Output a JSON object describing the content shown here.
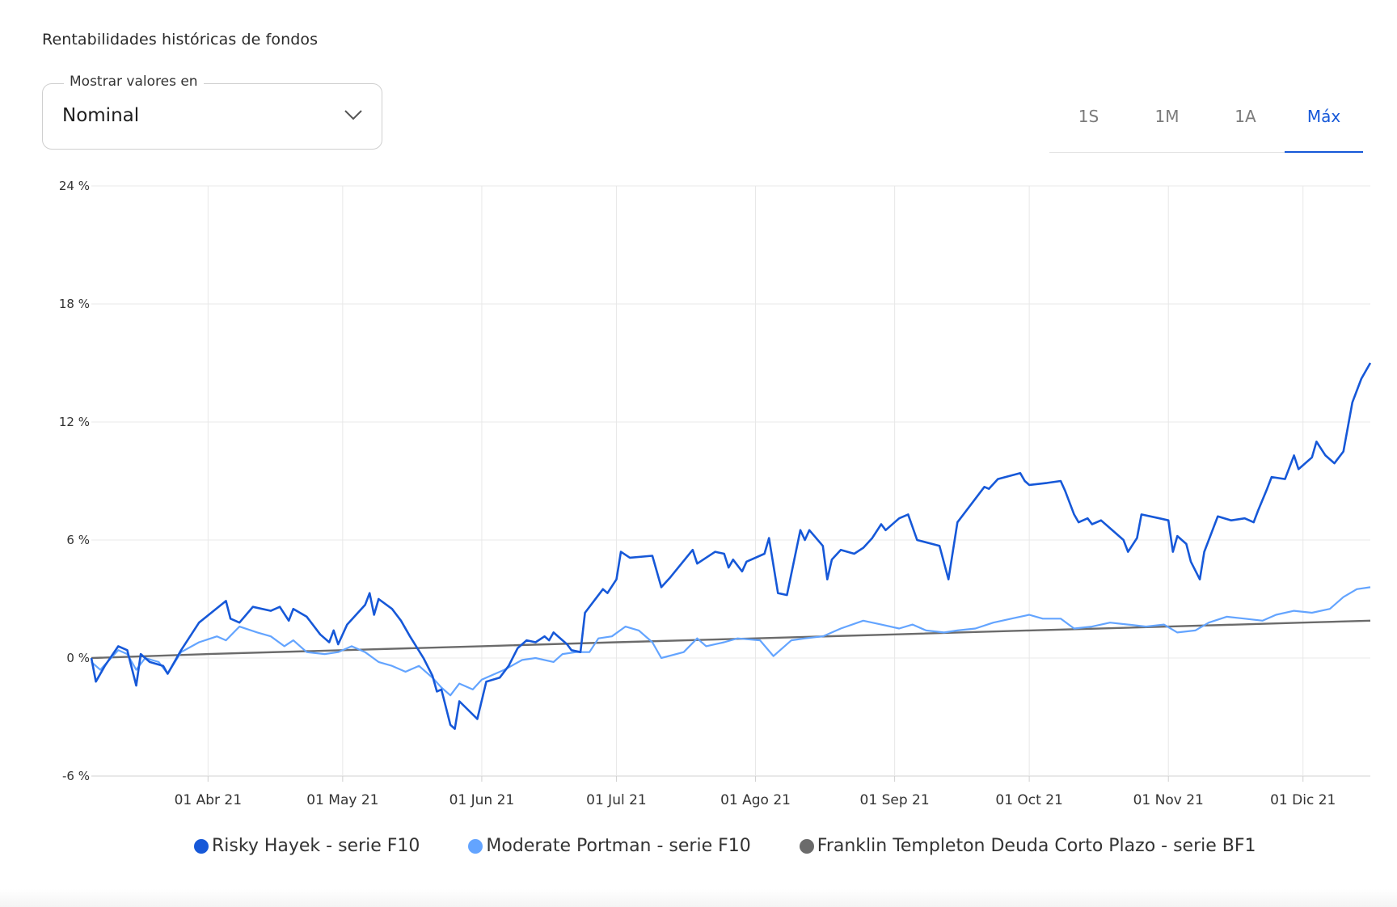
{
  "header": {
    "title": "Rentabilidades históricas de fondos"
  },
  "display_select": {
    "label": "Mostrar valores en",
    "value": "Nominal",
    "icon": "chevron-down-icon"
  },
  "range_tabs": [
    {
      "label": "1S",
      "active": false
    },
    {
      "label": "1M",
      "active": false
    },
    {
      "label": "1A",
      "active": false
    },
    {
      "label": "Máx",
      "active": true
    }
  ],
  "colors": {
    "accent": "#1658d8",
    "grid": "#e8e8e8",
    "axis": "#d0d0d0"
  },
  "chart_data": {
    "type": "line",
    "title": "",
    "xlabel": "",
    "ylabel": "",
    "xlim": [
      "2021-03-06",
      "2021-12-16"
    ],
    "ylim": [
      -6,
      24
    ],
    "yticks": [
      -6,
      0,
      6,
      12,
      18,
      24
    ],
    "ytick_labels": [
      "-6 %",
      "0 %",
      "6 %",
      "12 %",
      "18 %",
      "24 %"
    ],
    "xticks": [
      "2021-04-01",
      "2021-05-01",
      "2021-06-01",
      "2021-07-01",
      "2021-08-01",
      "2021-09-01",
      "2021-10-01",
      "2021-11-01",
      "2021-12-01"
    ],
    "xtick_labels": [
      "01 Abr 21",
      "01 May 21",
      "01 Jun 21",
      "01 Jul 21",
      "01 Ago 21",
      "01 Sep 21",
      "01 Oct 21",
      "01 Nov 21",
      "01 Dic 21"
    ],
    "grid": true,
    "legend_position": "bottom",
    "series": [
      {
        "name": "Risky Hayek - serie F10",
        "color": "#1658d8",
        "points": [
          [
            "2021-03-06",
            0.0
          ],
          [
            "2021-03-07",
            -1.2
          ],
          [
            "2021-03-09",
            -0.4
          ],
          [
            "2021-03-12",
            0.6
          ],
          [
            "2021-03-14",
            0.4
          ],
          [
            "2021-03-16",
            -1.4
          ],
          [
            "2021-03-17",
            0.2
          ],
          [
            "2021-03-19",
            -0.2
          ],
          [
            "2021-03-22",
            -0.4
          ],
          [
            "2021-03-23",
            -0.8
          ],
          [
            "2021-03-26",
            0.4
          ],
          [
            "2021-03-30",
            1.8
          ],
          [
            "2021-04-05",
            2.9
          ],
          [
            "2021-04-06",
            2.0
          ],
          [
            "2021-04-08",
            1.8
          ],
          [
            "2021-04-11",
            2.6
          ],
          [
            "2021-04-15",
            2.4
          ],
          [
            "2021-04-17",
            2.6
          ],
          [
            "2021-04-19",
            1.9
          ],
          [
            "2021-04-20",
            2.5
          ],
          [
            "2021-04-23",
            2.1
          ],
          [
            "2021-04-26",
            1.2
          ],
          [
            "2021-04-28",
            0.8
          ],
          [
            "2021-04-29",
            1.4
          ],
          [
            "2021-04-30",
            0.7
          ],
          [
            "2021-05-02",
            1.7
          ],
          [
            "2021-05-06",
            2.7
          ],
          [
            "2021-05-07",
            3.3
          ],
          [
            "2021-05-08",
            2.2
          ],
          [
            "2021-05-09",
            3.0
          ],
          [
            "2021-05-12",
            2.5
          ],
          [
            "2021-05-14",
            1.9
          ],
          [
            "2021-05-16",
            1.1
          ],
          [
            "2021-05-19",
            0.0
          ],
          [
            "2021-05-21",
            -0.9
          ],
          [
            "2021-05-22",
            -1.7
          ],
          [
            "2021-05-23",
            -1.6
          ],
          [
            "2021-05-25",
            -3.4
          ],
          [
            "2021-05-26",
            -3.6
          ],
          [
            "2021-05-27",
            -2.2
          ],
          [
            "2021-05-31",
            -3.1
          ],
          [
            "2021-06-02",
            -1.2
          ],
          [
            "2021-06-05",
            -1.0
          ],
          [
            "2021-06-07",
            -0.4
          ],
          [
            "2021-06-09",
            0.5
          ],
          [
            "2021-06-11",
            0.9
          ],
          [
            "2021-06-13",
            0.8
          ],
          [
            "2021-06-15",
            1.1
          ],
          [
            "2021-06-16",
            0.9
          ],
          [
            "2021-06-17",
            1.3
          ],
          [
            "2021-06-20",
            0.7
          ],
          [
            "2021-06-21",
            0.4
          ],
          [
            "2021-06-23",
            0.3
          ],
          [
            "2021-06-24",
            2.3
          ],
          [
            "2021-06-28",
            3.5
          ],
          [
            "2021-06-29",
            3.3
          ],
          [
            "2021-07-01",
            4.0
          ],
          [
            "2021-07-02",
            5.4
          ],
          [
            "2021-07-04",
            5.1
          ],
          [
            "2021-07-09",
            5.2
          ],
          [
            "2021-07-11",
            3.6
          ],
          [
            "2021-07-13",
            4.1
          ],
          [
            "2021-07-18",
            5.5
          ],
          [
            "2021-07-19",
            4.8
          ],
          [
            "2021-07-23",
            5.4
          ],
          [
            "2021-07-25",
            5.3
          ],
          [
            "2021-07-26",
            4.6
          ],
          [
            "2021-07-27",
            5.0
          ],
          [
            "2021-07-29",
            4.4
          ],
          [
            "2021-07-30",
            4.9
          ],
          [
            "2021-08-03",
            5.3
          ],
          [
            "2021-08-04",
            6.1
          ],
          [
            "2021-08-06",
            3.3
          ],
          [
            "2021-08-08",
            3.2
          ],
          [
            "2021-08-11",
            6.5
          ],
          [
            "2021-08-12",
            6.0
          ],
          [
            "2021-08-13",
            6.5
          ],
          [
            "2021-08-16",
            5.7
          ],
          [
            "2021-08-17",
            4.0
          ],
          [
            "2021-08-18",
            5.0
          ],
          [
            "2021-08-20",
            5.5
          ],
          [
            "2021-08-23",
            5.3
          ],
          [
            "2021-08-25",
            5.6
          ],
          [
            "2021-08-27",
            6.1
          ],
          [
            "2021-08-29",
            6.8
          ],
          [
            "2021-08-30",
            6.5
          ],
          [
            "2021-09-02",
            7.1
          ],
          [
            "2021-09-04",
            7.3
          ],
          [
            "2021-09-06",
            6.0
          ],
          [
            "2021-09-11",
            5.7
          ],
          [
            "2021-09-13",
            4.0
          ],
          [
            "2021-09-15",
            6.9
          ],
          [
            "2021-09-20",
            8.4
          ],
          [
            "2021-09-21",
            8.7
          ],
          [
            "2021-09-22",
            8.6
          ],
          [
            "2021-09-24",
            9.1
          ],
          [
            "2021-09-29",
            9.4
          ],
          [
            "2021-09-30",
            9.0
          ],
          [
            "2021-10-01",
            8.8
          ],
          [
            "2021-10-05",
            8.9
          ],
          [
            "2021-10-08",
            9.0
          ],
          [
            "2021-10-09",
            8.5
          ],
          [
            "2021-10-11",
            7.3
          ],
          [
            "2021-10-12",
            6.9
          ],
          [
            "2021-10-14",
            7.1
          ],
          [
            "2021-10-15",
            6.8
          ],
          [
            "2021-10-17",
            7.0
          ],
          [
            "2021-10-19",
            6.6
          ],
          [
            "2021-10-22",
            6.0
          ],
          [
            "2021-10-23",
            5.4
          ],
          [
            "2021-10-25",
            6.1
          ],
          [
            "2021-10-26",
            7.3
          ],
          [
            "2021-10-30",
            7.1
          ],
          [
            "2021-11-01",
            7.0
          ],
          [
            "2021-11-02",
            5.4
          ],
          [
            "2021-11-03",
            6.2
          ],
          [
            "2021-11-05",
            5.8
          ],
          [
            "2021-11-06",
            4.9
          ],
          [
            "2021-11-08",
            4.0
          ],
          [
            "2021-11-09",
            5.4
          ],
          [
            "2021-11-12",
            7.2
          ],
          [
            "2021-11-15",
            7.0
          ],
          [
            "2021-11-18",
            7.1
          ],
          [
            "2021-11-20",
            6.9
          ],
          [
            "2021-11-21",
            7.5
          ],
          [
            "2021-11-23",
            8.6
          ],
          [
            "2021-11-24",
            9.2
          ],
          [
            "2021-11-27",
            9.1
          ],
          [
            "2021-11-29",
            10.3
          ],
          [
            "2021-11-30",
            9.6
          ],
          [
            "2021-12-03",
            10.2
          ],
          [
            "2021-12-04",
            11.0
          ],
          [
            "2021-12-06",
            10.3
          ],
          [
            "2021-12-08",
            9.9
          ],
          [
            "2021-12-10",
            10.5
          ],
          [
            "2021-12-12",
            13.0
          ],
          [
            "2021-12-14",
            14.2
          ],
          [
            "2021-12-16",
            15.0
          ]
        ]
      },
      {
        "name": "Moderate Portman - serie F10",
        "color": "#63a4ff",
        "points": [
          [
            "2021-03-06",
            -0.2
          ],
          [
            "2021-03-08",
            -0.6
          ],
          [
            "2021-03-10",
            -0.1
          ],
          [
            "2021-03-12",
            0.4
          ],
          [
            "2021-03-14",
            0.2
          ],
          [
            "2021-03-16",
            -0.6
          ],
          [
            "2021-03-18",
            0.0
          ],
          [
            "2021-03-21",
            -0.2
          ],
          [
            "2021-03-23",
            -0.8
          ],
          [
            "2021-03-26",
            0.3
          ],
          [
            "2021-03-30",
            0.8
          ],
          [
            "2021-04-03",
            1.1
          ],
          [
            "2021-04-05",
            0.9
          ],
          [
            "2021-04-08",
            1.6
          ],
          [
            "2021-04-12",
            1.3
          ],
          [
            "2021-04-15",
            1.1
          ],
          [
            "2021-04-18",
            0.6
          ],
          [
            "2021-04-20",
            0.9
          ],
          [
            "2021-04-23",
            0.3
          ],
          [
            "2021-04-27",
            0.2
          ],
          [
            "2021-04-30",
            0.3
          ],
          [
            "2021-05-03",
            0.6
          ],
          [
            "2021-05-06",
            0.3
          ],
          [
            "2021-05-09",
            -0.2
          ],
          [
            "2021-05-12",
            -0.4
          ],
          [
            "2021-05-15",
            -0.7
          ],
          [
            "2021-05-18",
            -0.4
          ],
          [
            "2021-05-21",
            -1.0
          ],
          [
            "2021-05-23",
            -1.5
          ],
          [
            "2021-05-25",
            -1.9
          ],
          [
            "2021-05-27",
            -1.3
          ],
          [
            "2021-05-30",
            -1.6
          ],
          [
            "2021-06-01",
            -1.1
          ],
          [
            "2021-06-03",
            -0.9
          ],
          [
            "2021-06-06",
            -0.6
          ],
          [
            "2021-06-10",
            -0.1
          ],
          [
            "2021-06-13",
            0.0
          ],
          [
            "2021-06-17",
            -0.2
          ],
          [
            "2021-06-19",
            0.2
          ],
          [
            "2021-06-22",
            0.3
          ],
          [
            "2021-06-25",
            0.3
          ],
          [
            "2021-06-27",
            1.0
          ],
          [
            "2021-06-30",
            1.1
          ],
          [
            "2021-07-03",
            1.6
          ],
          [
            "2021-07-06",
            1.4
          ],
          [
            "2021-07-09",
            0.8
          ],
          [
            "2021-07-11",
            0.0
          ],
          [
            "2021-07-16",
            0.3
          ],
          [
            "2021-07-19",
            1.0
          ],
          [
            "2021-07-21",
            0.6
          ],
          [
            "2021-07-25",
            0.8
          ],
          [
            "2021-07-28",
            1.0
          ],
          [
            "2021-08-02",
            0.9
          ],
          [
            "2021-08-05",
            0.1
          ],
          [
            "2021-08-09",
            0.9
          ],
          [
            "2021-08-12",
            1.0
          ],
          [
            "2021-08-16",
            1.1
          ],
          [
            "2021-08-20",
            1.5
          ],
          [
            "2021-08-25",
            1.9
          ],
          [
            "2021-08-29",
            1.7
          ],
          [
            "2021-09-02",
            1.5
          ],
          [
            "2021-09-05",
            1.7
          ],
          [
            "2021-09-08",
            1.4
          ],
          [
            "2021-09-12",
            1.3
          ],
          [
            "2021-09-15",
            1.4
          ],
          [
            "2021-09-19",
            1.5
          ],
          [
            "2021-09-23",
            1.8
          ],
          [
            "2021-09-27",
            2.0
          ],
          [
            "2021-10-01",
            2.2
          ],
          [
            "2021-10-04",
            2.0
          ],
          [
            "2021-10-08",
            2.0
          ],
          [
            "2021-10-11",
            1.5
          ],
          [
            "2021-10-15",
            1.6
          ],
          [
            "2021-10-19",
            1.8
          ],
          [
            "2021-10-23",
            1.7
          ],
          [
            "2021-10-27",
            1.6
          ],
          [
            "2021-10-31",
            1.7
          ],
          [
            "2021-11-03",
            1.3
          ],
          [
            "2021-11-07",
            1.4
          ],
          [
            "2021-11-10",
            1.8
          ],
          [
            "2021-11-14",
            2.1
          ],
          [
            "2021-11-18",
            2.0
          ],
          [
            "2021-11-22",
            1.9
          ],
          [
            "2021-11-25",
            2.2
          ],
          [
            "2021-11-29",
            2.4
          ],
          [
            "2021-12-03",
            2.3
          ],
          [
            "2021-12-07",
            2.5
          ],
          [
            "2021-12-10",
            3.1
          ],
          [
            "2021-12-13",
            3.5
          ],
          [
            "2021-12-16",
            3.6
          ]
        ]
      },
      {
        "name": "Franklin Templeton Deuda Corto Plazo - serie BF1",
        "color": "#6b6b6b",
        "points": [
          [
            "2021-03-06",
            0.0
          ],
          [
            "2021-04-01",
            0.2
          ],
          [
            "2021-05-01",
            0.4
          ],
          [
            "2021-06-01",
            0.6
          ],
          [
            "2021-07-01",
            0.8
          ],
          [
            "2021-08-01",
            1.0
          ],
          [
            "2021-09-01",
            1.2
          ],
          [
            "2021-10-01",
            1.4
          ],
          [
            "2021-11-01",
            1.6
          ],
          [
            "2021-12-01",
            1.8
          ],
          [
            "2021-12-16",
            1.9
          ]
        ]
      }
    ]
  }
}
